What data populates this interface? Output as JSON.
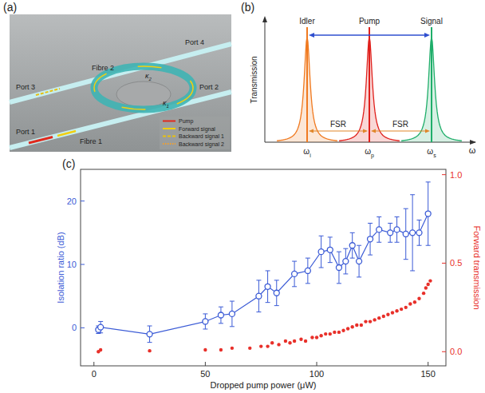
{
  "panel_a": {
    "letter": "(a)",
    "fibre_2": "Fibre 2",
    "fibre_1": "Fibre 1",
    "port_1": "Port 1",
    "port_2": "Port 2",
    "port_3": "Port 3",
    "port_4": "Port 4",
    "kappa_2": {
      "symbol": "κ",
      "sub": "2"
    },
    "kappa_1": {
      "symbol": "κ",
      "sub": "1"
    },
    "legend": [
      {
        "label": "Pump",
        "color": "#e02a1e",
        "line_style": "solid"
      },
      {
        "label": "Forward signal",
        "color": "#f2cf10",
        "line_style": "solid"
      },
      {
        "label": "Backward signal 1",
        "color": "#e8c010",
        "line_style": "dashed"
      },
      {
        "label": "Backward signal 2",
        "color": "#f0a030",
        "line_style": "dotted"
      }
    ]
  },
  "panel_b": {
    "letter": "(b)",
    "y_label": "Transmission",
    "x_label": "ω",
    "peaks": [
      {
        "label": "Idler",
        "tick": {
          "symbol": "ω",
          "sub": "i"
        },
        "color": "#f07a20"
      },
      {
        "label": "Pump",
        "tick": {
          "symbol": "ω",
          "sub": "p"
        },
        "color": "#e0201c"
      },
      {
        "label": "Signal",
        "tick": {
          "symbol": "ω",
          "sub": "s"
        },
        "color": "#1fae6a"
      }
    ],
    "spacings": [
      "FSR",
      "FSR"
    ]
  },
  "chart_data": {
    "type": "scatter",
    "panel_label": "(c)",
    "x_label": "Dropped pump power (μW)",
    "y_label": "Isolation ratio (dB)",
    "y2_label": "Forward transmission",
    "xlim": [
      -6,
      158
    ],
    "xticks": [
      0,
      50,
      100,
      150
    ],
    "ylim": [
      -6,
      25
    ],
    "yticks": [
      0,
      10,
      20
    ],
    "y2lim": [
      -0.08,
      1.03
    ],
    "y2ticks": [
      {
        "value": 0,
        "label": "0.0"
      },
      {
        "value": 0.5,
        "label": "0.5"
      },
      {
        "value": 1,
        "label": "1.0"
      }
    ],
    "grid": false,
    "series": [
      {
        "type": "line",
        "marker": "circle",
        "color": "#3b5bd6",
        "x": [
          2,
          3,
          25,
          50,
          57,
          62,
          74,
          78,
          82,
          90,
          96,
          102,
          106,
          110,
          113,
          116,
          119,
          124,
          128,
          133,
          136,
          140,
          143,
          146,
          150
        ],
        "values": [
          -0.3,
          0.1,
          -1,
          1,
          2,
          2.2,
          5,
          6.5,
          5.5,
          8.5,
          9,
          12,
          12.3,
          9.5,
          10.5,
          13,
          10.5,
          14,
          15.5,
          15,
          15.5,
          14.8,
          15,
          15,
          18
        ],
        "errors": [
          0.6,
          0.9,
          1.3,
          1.2,
          1.3,
          2,
          2.5,
          2.5,
          2,
          2,
          2,
          2.5,
          2,
          2.5,
          2,
          2,
          2.5,
          2.5,
          2,
          1.5,
          2,
          4,
          6,
          2,
          5
        ]
      },
      {
        "type": "scatter",
        "marker": "dot",
        "color": "#e8302a",
        "axis": "y2",
        "x": [
          2,
          3,
          25,
          50,
          57,
          62,
          70,
          75,
          78,
          80,
          83,
          86,
          88,
          90,
          93,
          95,
          98,
          100,
          102,
          104,
          106,
          108,
          110,
          112,
          114,
          116,
          118,
          120,
          122,
          124,
          126,
          128,
          130,
          132,
          134,
          136,
          138,
          140,
          142,
          144,
          146,
          148,
          149,
          150,
          151
        ],
        "values": [
          0,
          0.01,
          0.005,
          0.01,
          0.01,
          0.02,
          0.02,
          0.03,
          0.03,
          0.05,
          0.04,
          0.06,
          0.05,
          0.06,
          0.07,
          0.06,
          0.08,
          0.08,
          0.09,
          0.1,
          0.1,
          0.11,
          0.11,
          0.12,
          0.13,
          0.14,
          0.15,
          0.15,
          0.17,
          0.17,
          0.18,
          0.19,
          0.2,
          0.21,
          0.22,
          0.23,
          0.24,
          0.25,
          0.27,
          0.28,
          0.3,
          0.33,
          0.36,
          0.38,
          0.4
        ]
      }
    ]
  }
}
